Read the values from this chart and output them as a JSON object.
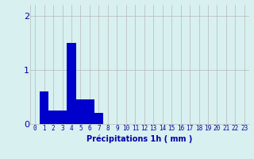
{
  "values": [
    0,
    0.6,
    0.25,
    0.25,
    1.5,
    0.45,
    0.45,
    0.2,
    0,
    0,
    0,
    0,
    0,
    0,
    0,
    0,
    0,
    0,
    0,
    0,
    0,
    0,
    0,
    0
  ],
  "xlabels": [
    "0",
    "1",
    "2",
    "3",
    "4",
    "5",
    "6",
    "7",
    "8",
    "9",
    "10",
    "11",
    "12",
    "13",
    "14",
    "15",
    "16",
    "17",
    "18",
    "19",
    "20",
    "21",
    "22",
    "23"
  ],
  "xlabel": "Précipitations 1h ( mm )",
  "ylim": [
    0,
    2.2
  ],
  "yticks": [
    0,
    1,
    2
  ],
  "bar_color": "#0000cc",
  "bg_color": "#d8f0f0",
  "grid_color": "#b8b8b8",
  "label_color": "#0000aa",
  "tick_color": "#0000aa",
  "figsize": [
    3.2,
    2.0
  ],
  "dpi": 100
}
